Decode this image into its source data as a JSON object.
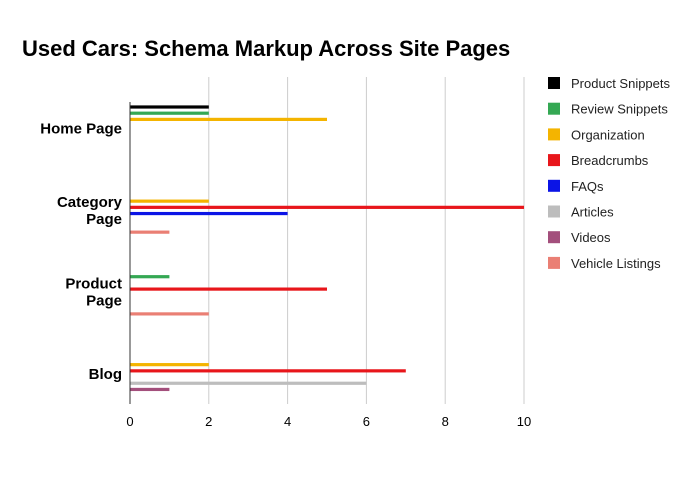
{
  "chart_data": {
    "type": "bar",
    "orientation": "horizontal",
    "title": "Used Cars: Schema Markup Across Site Pages",
    "categories": [
      [
        "Home Page"
      ],
      [
        "Category",
        "Page"
      ],
      [
        "Product",
        "Page"
      ],
      [
        "Blog"
      ]
    ],
    "series": [
      {
        "name": "Product Snippets",
        "color": "#000000",
        "values": [
          2,
          0,
          0,
          0
        ]
      },
      {
        "name": "Review Snippets",
        "color": "#34a853",
        "values": [
          2,
          0,
          1,
          0
        ]
      },
      {
        "name": "Organization",
        "color": "#f4b400",
        "values": [
          5,
          2,
          0,
          2
        ]
      },
      {
        "name": "Breadcrumbs",
        "color": "#e8161b",
        "values": [
          0,
          10,
          5,
          7
        ]
      },
      {
        "name": "FAQs",
        "color": "#0b14e6",
        "values": [
          0,
          4,
          0,
          0
        ]
      },
      {
        "name": "Articles",
        "color": "#bdbdbd",
        "values": [
          0,
          0,
          0,
          6
        ]
      },
      {
        "name": "Videos",
        "color": "#a34f7c",
        "values": [
          0,
          0,
          0,
          1
        ]
      },
      {
        "name": "Vehicle Listings",
        "color": "#ea7f74",
        "values": [
          0,
          1,
          2,
          0
        ]
      }
    ],
    "xlim": [
      0,
      10
    ],
    "xticks": [
      0,
      2,
      4,
      6,
      8,
      10
    ],
    "grid": true,
    "legend_position": "right"
  }
}
